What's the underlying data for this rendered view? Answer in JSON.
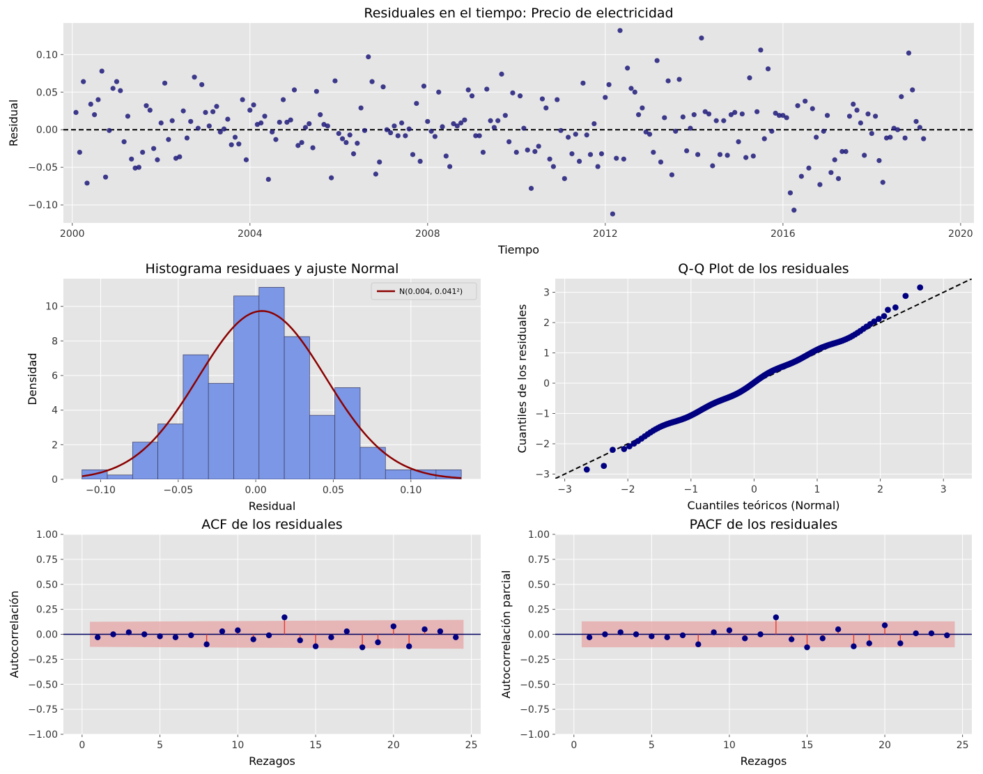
{
  "chart_data": [
    {
      "id": "residuals_time",
      "type": "scatter",
      "title": "Residuales en el tiempo: Precio de electricidad",
      "xlabel": "Tiempo",
      "ylabel": "Residual",
      "xlim": [
        1999.8,
        2020.3
      ],
      "ylim": [
        -0.124,
        0.142
      ],
      "xticks": [
        2000,
        2004,
        2008,
        2012,
        2016,
        2020
      ],
      "xtick_labels": [
        "2000",
        "2004",
        "2008",
        "2012",
        "2016",
        "2020"
      ],
      "yticks": [
        -0.1,
        -0.05,
        0.0,
        0.05,
        0.1
      ],
      "ytick_labels": [
        "−0.10",
        "−0.05",
        "0.00",
        "0.05",
        "0.10"
      ],
      "grid": true,
      "reference_line": {
        "y": 0.0,
        "style": "dashed",
        "color": "#000000"
      },
      "point_color": "#1f1a7a",
      "x_start": 2000.083,
      "x_step": 0.08333,
      "values": [
        0.023,
        -0.03,
        0.064,
        -0.071,
        0.034,
        0.02,
        0.04,
        0.078,
        -0.063,
        -0.001,
        0.055,
        0.064,
        0.052,
        -0.016,
        0.018,
        -0.039,
        -0.051,
        -0.05,
        -0.03,
        0.032,
        0.026,
        -0.025,
        -0.04,
        0.009,
        0.062,
        -0.013,
        0.012,
        -0.038,
        -0.036,
        0.025,
        -0.011,
        0.011,
        0.07,
        0.002,
        0.06,
        0.023,
        0.005,
        0.024,
        0.031,
        -0.003,
        0.001,
        0.014,
        -0.02,
        -0.01,
        -0.019,
        0.04,
        -0.04,
        0.026,
        0.033,
        0.007,
        0.009,
        0.018,
        -0.066,
        -0.003,
        -0.013,
        0.01,
        0.04,
        0.01,
        0.013,
        0.053,
        -0.021,
        -0.017,
        0.003,
        0.008,
        -0.024,
        0.051,
        0.02,
        0.007,
        0.005,
        -0.064,
        0.065,
        -0.005,
        -0.012,
        -0.017,
        -0.007,
        -0.032,
        -0.018,
        0.029,
        -0.001,
        0.097,
        0.064,
        -0.059,
        -0.043,
        0.057,
        0.0,
        -0.004,
        0.005,
        -0.008,
        0.009,
        -0.008,
        0.001,
        -0.033,
        0.035,
        -0.042,
        0.058,
        0.011,
        -0.002,
        -0.009,
        0.05,
        0.004,
        -0.035,
        -0.049,
        0.008,
        0.005,
        0.009,
        0.013,
        0.053,
        0.045,
        -0.008,
        -0.008,
        -0.03,
        0.054,
        0.012,
        0.003,
        0.012,
        0.074,
        0.019,
        -0.016,
        0.049,
        -0.03,
        0.045,
        0.002,
        -0.027,
        -0.078,
        -0.029,
        -0.022,
        0.041,
        0.029,
        -0.039,
        -0.049,
        0.04,
        -0.001,
        -0.065,
        -0.01,
        -0.032,
        -0.006,
        -0.042,
        0.062,
        -0.007,
        -0.033,
        0.008,
        -0.049,
        -0.032,
        0.043,
        0.06,
        -0.112,
        -0.038,
        0.132,
        -0.039,
        0.082,
        0.055,
        0.05,
        0.02,
        0.029,
        -0.003,
        -0.006,
        -0.03,
        0.092,
        -0.043,
        0.016,
        0.065,
        -0.06,
        -0.002,
        0.067,
        0.017,
        -0.028,
        0.002,
        0.02,
        -0.033,
        0.122,
        0.024,
        0.021,
        -0.048,
        0.012,
        -0.033,
        0.012,
        -0.034,
        0.02,
        0.023,
        -0.016,
        0.021,
        -0.037,
        0.069,
        -0.035,
        0.024,
        0.106,
        -0.012,
        0.081,
        -0.002,
        0.022,
        0.019,
        0.019,
        0.016,
        -0.084,
        -0.107,
        0.032,
        -0.062,
        0.038,
        -0.051,
        0.028,
        -0.01,
        -0.073,
        -0.002,
        0.019,
        -0.057,
        -0.04,
        -0.065,
        -0.029,
        -0.029,
        0.018,
        0.034,
        0.026,
        0.009,
        -0.034,
        0.021,
        -0.005,
        0.018,
        -0.041,
        -0.07,
        -0.011,
        -0.01,
        0.002,
        0.0,
        0.044,
        -0.011,
        0.102,
        0.053,
        0.011,
        0.003,
        -0.012
      ]
    },
    {
      "id": "histogram",
      "type": "bar",
      "title": "Histograma residuaes y ajuste Normal",
      "xlabel": "Residual",
      "ylabel": "Densidad",
      "xlim": [
        -0.124,
        0.145
      ],
      "ylim": [
        0,
        11.6
      ],
      "xticks": [
        -0.1,
        -0.05,
        0.0,
        0.05,
        0.1
      ],
      "xtick_labels": [
        "−0.10",
        "−0.05",
        "0.00",
        "0.05",
        "0.10"
      ],
      "yticks": [
        0,
        2,
        4,
        6,
        8,
        10
      ],
      "ytick_labels": [
        "0",
        "2",
        "4",
        "6",
        "8",
        "10"
      ],
      "grid": true,
      "bin_start": -0.112,
      "bin_width": 0.0163,
      "values": [
        0.55,
        0.25,
        2.15,
        3.2,
        7.2,
        5.55,
        10.6,
        11.1,
        8.25,
        3.7,
        5.3,
        1.85,
        0.55,
        0.55,
        0.55
      ],
      "bar_color": "#7b97e6",
      "fit": {
        "label": "N(0.004, 0.041²)",
        "mean": 0.004,
        "std": 0.041,
        "color": "#8b0000"
      },
      "legend_position": "top-right"
    },
    {
      "id": "qqplot",
      "type": "scatter",
      "title": "Q-Q Plot de los residuales",
      "xlabel": "Cuantiles teóricos (Normal)",
      "ylabel": "Cuantiles de los residuales",
      "xlim": [
        -3.15,
        3.45
      ],
      "ylim": [
        -3.15,
        3.45
      ],
      "xticks": [
        -3,
        -2,
        -1,
        0,
        1,
        2,
        3
      ],
      "xtick_labels": [
        "−3",
        "−2",
        "−1",
        "0",
        "1",
        "2",
        "3"
      ],
      "yticks": [
        -3,
        -2,
        -1,
        0,
        1,
        2,
        3
      ],
      "ytick_labels": [
        "−3",
        "−2",
        "−1",
        "0",
        "1",
        "2",
        "3"
      ],
      "grid": true,
      "reference_line": {
        "slope": 1,
        "intercept": 0,
        "style": "dashed",
        "color": "#000000"
      },
      "point_color": "#000080",
      "extreme_points": [
        [
          -2.65,
          -2.85
        ],
        [
          -2.38,
          -2.73
        ],
        [
          -2.24,
          -2.2
        ],
        [
          2.4,
          2.88
        ],
        [
          2.63,
          3.16
        ],
        [
          2.24,
          2.5
        ],
        [
          2.12,
          2.42
        ]
      ]
    },
    {
      "id": "acf",
      "type": "stem",
      "title": "ACF de los residuales",
      "xlabel": "Rezagos",
      "ylabel": "Autocorrelación",
      "xlim": [
        -1.2,
        25.6
      ],
      "ylim": [
        -1.0,
        1.0
      ],
      "xticks": [
        0,
        5,
        10,
        15,
        20,
        25
      ],
      "xtick_labels": [
        "0",
        "5",
        "10",
        "15",
        "20",
        "25"
      ],
      "yticks": [
        -1.0,
        -0.75,
        -0.5,
        -0.25,
        0.0,
        0.25,
        0.5,
        0.75,
        1.0
      ],
      "ytick_labels": [
        "−1.00",
        "−0.75",
        "−0.50",
        "−0.25",
        "0.00",
        "0.25",
        "0.50",
        "0.75",
        "1.00"
      ],
      "grid": true,
      "lags": [
        1,
        2,
        3,
        4,
        5,
        6,
        7,
        8,
        9,
        10,
        11,
        12,
        13,
        14,
        15,
        16,
        17,
        18,
        19,
        20,
        21,
        22,
        23,
        24
      ],
      "values": [
        -0.03,
        0.0,
        0.02,
        0.0,
        -0.02,
        -0.03,
        -0.01,
        -0.1,
        0.03,
        0.04,
        -0.05,
        -0.01,
        0.17,
        -0.06,
        -0.12,
        -0.03,
        0.03,
        -0.13,
        -0.08,
        0.08,
        -0.12,
        0.05,
        0.03,
        -0.03
      ],
      "confidence_band": {
        "x_start": 0.5,
        "x_end": 24.5,
        "half_width_start": 0.125,
        "half_width_end": 0.145,
        "color": "#e5a5a5"
      }
    },
    {
      "id": "pacf",
      "type": "stem",
      "title": "PACF de los residuales",
      "xlabel": "Rezagos",
      "ylabel": "Autocorrelación parcial",
      "xlim": [
        -1.2,
        25.6
      ],
      "ylim": [
        -1.0,
        1.0
      ],
      "xticks": [
        0,
        5,
        10,
        15,
        20,
        25
      ],
      "xtick_labels": [
        "0",
        "5",
        "10",
        "15",
        "20",
        "25"
      ],
      "yticks": [
        -1.0,
        -0.75,
        -0.5,
        -0.25,
        0.0,
        0.25,
        0.5,
        0.75,
        1.0
      ],
      "ytick_labels": [
        "−1.00",
        "−0.75",
        "−0.50",
        "−0.25",
        "0.00",
        "0.25",
        "0.50",
        "0.75",
        "1.00"
      ],
      "grid": true,
      "lags": [
        1,
        2,
        3,
        4,
        5,
        6,
        7,
        8,
        9,
        10,
        11,
        12,
        13,
        14,
        15,
        16,
        17,
        18,
        19,
        20,
        21,
        22,
        23,
        24
      ],
      "values": [
        -0.03,
        0.0,
        0.02,
        0.0,
        -0.02,
        -0.03,
        -0.01,
        -0.1,
        0.02,
        0.04,
        -0.04,
        0.0,
        0.17,
        -0.05,
        -0.13,
        -0.04,
        0.05,
        -0.12,
        -0.09,
        0.09,
        -0.09,
        0.01,
        0.01,
        -0.01
      ],
      "confidence_band": {
        "x_start": 0.5,
        "x_end": 24.5,
        "half_width_start": 0.13,
        "half_width_end": 0.13,
        "color": "#e5a5a5"
      }
    }
  ]
}
